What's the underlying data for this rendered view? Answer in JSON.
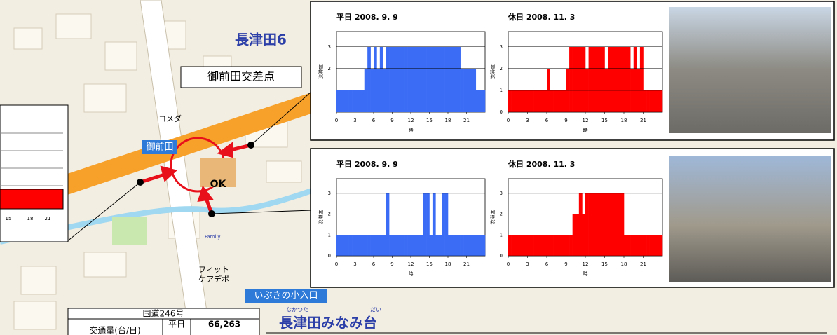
{
  "chart_data": [
    {
      "type": "bar",
      "title": "平日 2008. 9. 9",
      "ylabel": "渋滞度",
      "xlabel": "時",
      "color": "#3b6cf5",
      "x": [
        0,
        0.5,
        1,
        1.5,
        2,
        2.5,
        3,
        3.5,
        4,
        4.5,
        5,
        5.5,
        6,
        6.5,
        7,
        7.5,
        8,
        8.5,
        9,
        9.5,
        10,
        10.5,
        11,
        11.5,
        12,
        12.5,
        13,
        13.5,
        14,
        14.5,
        15,
        15.5,
        16,
        16.5,
        17,
        17.5,
        18,
        18.5,
        19,
        19.5,
        20,
        20.5,
        21,
        21.5,
        22,
        22.5,
        23,
        23.5
      ],
      "values": [
        1,
        1,
        1,
        1,
        1,
        1,
        1,
        1,
        1,
        2,
        3,
        2,
        3,
        2,
        3,
        2,
        3,
        3,
        3,
        3,
        3,
        3,
        3,
        3,
        3,
        3,
        3,
        3,
        3,
        3,
        3,
        3,
        3,
        3,
        3,
        3,
        3,
        3,
        3,
        3,
        2,
        2,
        2,
        2,
        2,
        1,
        1,
        1
      ],
      "xlim": [
        0,
        24
      ],
      "xticks": [
        0,
        3,
        6,
        9,
        12,
        15,
        18,
        21
      ],
      "ylim": [
        0,
        3.7
      ],
      "yticks": [
        2,
        3
      ],
      "grid": true
    },
    {
      "type": "bar",
      "title": "休日 2008. 11. 3",
      "ylabel": "渋滞度",
      "xlabel": "時",
      "color": "#ff0000",
      "x": [
        0,
        0.5,
        1,
        1.5,
        2,
        2.5,
        3,
        3.5,
        4,
        4.5,
        5,
        5.5,
        6,
        6.5,
        7,
        7.5,
        8,
        8.5,
        9,
        9.5,
        10,
        10.5,
        11,
        11.5,
        12,
        12.5,
        13,
        13.5,
        14,
        14.5,
        15,
        15.5,
        16,
        16.5,
        17,
        17.5,
        18,
        18.5,
        19,
        19.5,
        20,
        20.5,
        21,
        21.5,
        22,
        22.5,
        23,
        23.5
      ],
      "values": [
        1,
        1,
        1,
        1,
        1,
        1,
        1,
        1,
        1,
        1,
        1,
        1,
        2,
        1,
        1,
        1,
        1,
        1,
        2,
        3,
        3,
        3,
        3,
        3,
        2,
        3,
        3,
        3,
        3,
        3,
        2,
        3,
        3,
        3,
        3,
        3,
        3,
        3,
        2,
        3,
        2,
        3,
        1,
        1,
        1,
        1,
        1,
        1
      ],
      "xlim": [
        0,
        24
      ],
      "xticks": [
        0,
        3,
        6,
        9,
        12,
        15,
        18,
        21
      ],
      "ylim": [
        0,
        3.7
      ],
      "yticks": [
        0,
        1,
        2,
        3
      ],
      "grid": true
    },
    {
      "type": "bar",
      "title": "平日 2008. 9. 9",
      "ylabel": "渋滞度",
      "xlabel": "時",
      "color": "#3b6cf5",
      "x": [
        0,
        0.5,
        1,
        1.5,
        2,
        2.5,
        3,
        3.5,
        4,
        4.5,
        5,
        5.5,
        6,
        6.5,
        7,
        7.5,
        8,
        8.5,
        9,
        9.5,
        10,
        10.5,
        11,
        11.5,
        12,
        12.5,
        13,
        13.5,
        14,
        14.5,
        15,
        15.5,
        16,
        16.5,
        17,
        17.5,
        18,
        18.5,
        19,
        19.5,
        20,
        20.5,
        21,
        21.5,
        22,
        22.5,
        23,
        23.5
      ],
      "values": [
        1,
        1,
        1,
        1,
        1,
        1,
        1,
        1,
        1,
        1,
        1,
        1,
        1,
        1,
        1,
        1,
        3,
        1,
        1,
        1,
        1,
        1,
        1,
        1,
        1,
        1,
        1,
        1,
        3,
        3,
        1,
        3,
        1,
        1,
        3,
        3,
        1,
        1,
        1,
        1,
        1,
        1,
        1,
        1,
        1,
        1,
        1,
        1
      ],
      "xlim": [
        0,
        24
      ],
      "xticks": [
        0,
        3,
        6,
        9,
        12,
        15,
        18,
        21
      ],
      "ylim": [
        0,
        3.7
      ],
      "yticks": [
        0,
        1,
        2,
        3
      ],
      "grid": true
    },
    {
      "type": "bar",
      "title": "休日 2008. 11. 3",
      "ylabel": "渋滞度",
      "xlabel": "時",
      "color": "#ff0000",
      "x": [
        0,
        0.5,
        1,
        1.5,
        2,
        2.5,
        3,
        3.5,
        4,
        4.5,
        5,
        5.5,
        6,
        6.5,
        7,
        7.5,
        8,
        8.5,
        9,
        9.5,
        10,
        10.5,
        11,
        11.5,
        12,
        12.5,
        13,
        13.5,
        14,
        14.5,
        15,
        15.5,
        16,
        16.5,
        17,
        17.5,
        18,
        18.5,
        19,
        19.5,
        20,
        20.5,
        21,
        21.5,
        22,
        22.5,
        23,
        23.5
      ],
      "values": [
        1,
        1,
        1,
        1,
        1,
        1,
        1,
        1,
        1,
        1,
        1,
        1,
        1,
        1,
        1,
        1,
        1,
        1,
        1,
        1,
        2,
        2,
        3,
        2,
        3,
        3,
        3,
        3,
        3,
        3,
        3,
        3,
        3,
        3,
        3,
        3,
        1,
        1,
        1,
        1,
        1,
        1,
        1,
        1,
        1,
        1,
        1,
        1
      ],
      "xlim": [
        0,
        24
      ],
      "xticks": [
        0,
        3,
        6,
        9,
        12,
        15,
        18,
        21
      ],
      "ylim": [
        0,
        3.7
      ],
      "yticks": [
        0,
        1,
        2,
        3
      ],
      "grid": true
    }
  ],
  "map": {
    "labels": [
      "長津田6",
      "御前田交差点",
      "御前田",
      "コメダ",
      "OK",
      "いぶきの小入口",
      "フィット",
      "ケアデポ",
      "長津田みなみ台",
      "Family",
      "なかつた",
      "だい"
    ],
    "inset_xticks": [
      "15",
      "18",
      "21"
    ],
    "table": {
      "title": "国道246号",
      "row_label": "交通量(台/日)",
      "day": "平日",
      "value": "66,263"
    }
  }
}
